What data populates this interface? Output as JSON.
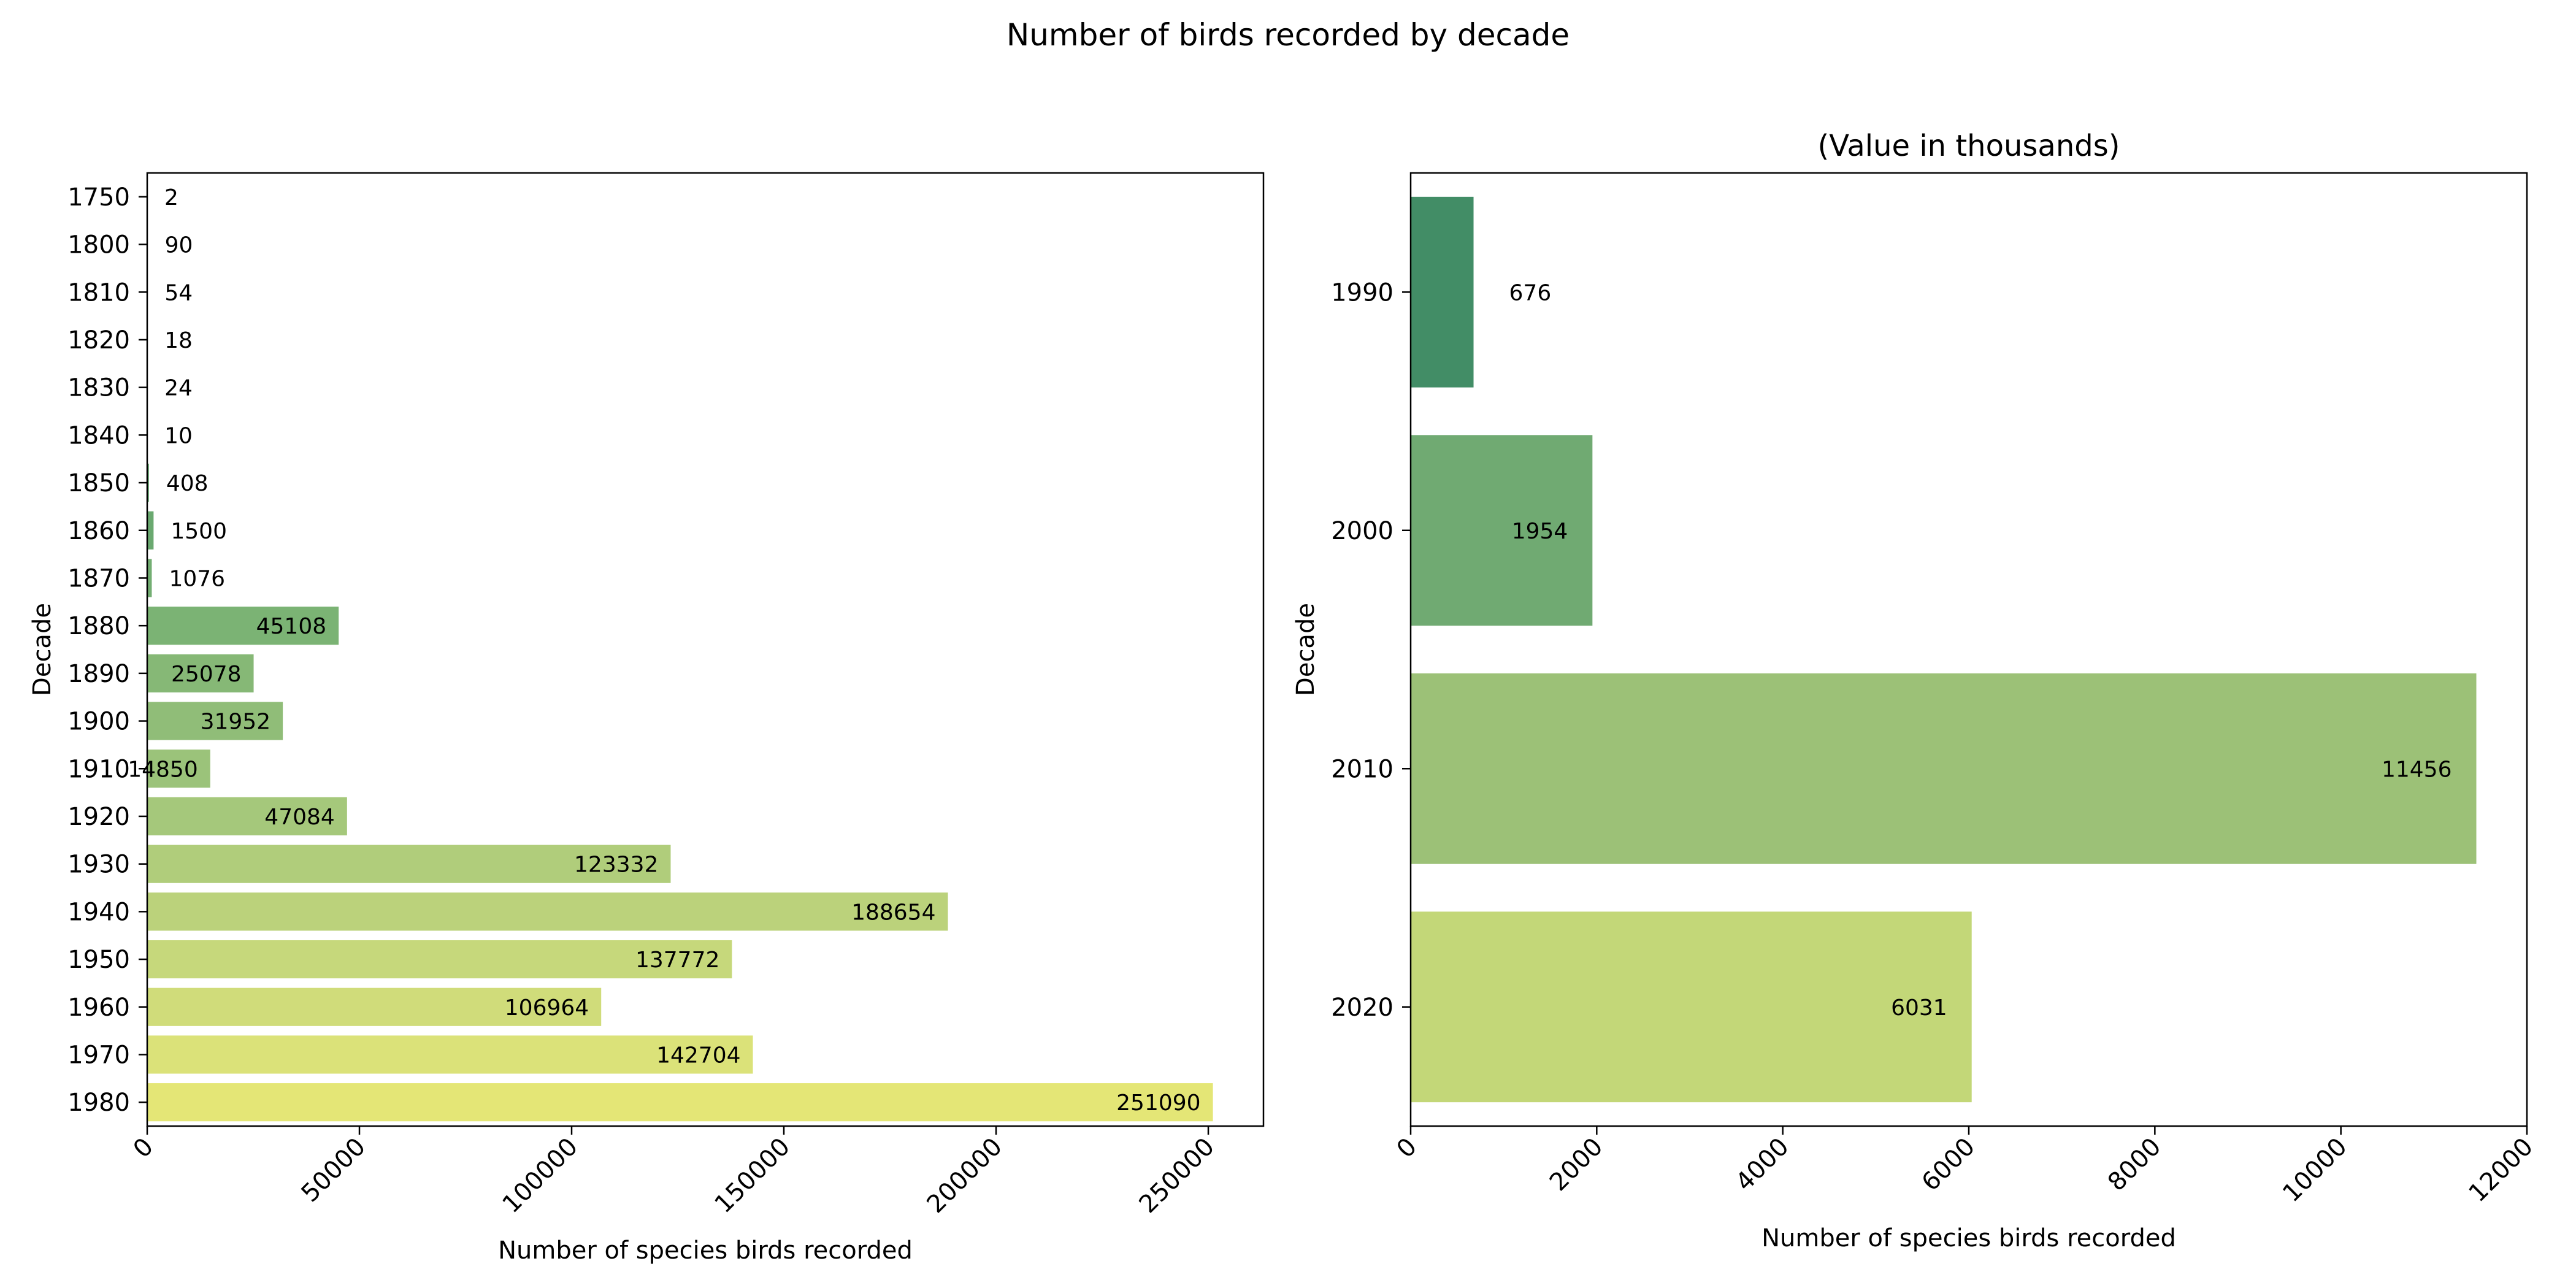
{
  "figure": {
    "title": "Number of birds recorded by decade"
  },
  "chart_data": [
    {
      "type": "bar",
      "orientation": "horizontal",
      "title": "",
      "xlabel": "Number of species birds recorded",
      "ylabel": "Decade",
      "xlim": [
        0,
        263000
      ],
      "xticks": [
        0,
        50000,
        100000,
        150000,
        200000,
        250000
      ],
      "categories": [
        "1750",
        "1800",
        "1810",
        "1820",
        "1830",
        "1840",
        "1850",
        "1860",
        "1870",
        "1880",
        "1890",
        "1900",
        "1910",
        "1920",
        "1930",
        "1940",
        "1950",
        "1960",
        "1970",
        "1980"
      ],
      "values": [
        2,
        90,
        54,
        18,
        24,
        10,
        408,
        1500,
        1076,
        45108,
        25078,
        31952,
        14850,
        47084,
        123332,
        188654,
        137772,
        106964,
        142704,
        251090
      ],
      "colors": [
        "#358a62",
        "#3b8e64",
        "#429266",
        "#4a9768",
        "#529b6a",
        "#5aa06c",
        "#62a56e",
        "#6aa970",
        "#73ae72",
        "#7bb374",
        "#86b876",
        "#90bd78",
        "#9bc37a",
        "#a5c87b",
        "#b0cd7b",
        "#bbd27b",
        "#c6d87b",
        "#d0dc7a",
        "#dbe279",
        "#e4e676"
      ],
      "grid": false
    },
    {
      "type": "bar",
      "orientation": "horizontal",
      "title": "(Value in thousands)",
      "xlabel": "Number of species birds recorded",
      "ylabel": "Decade",
      "xlim": [
        0,
        12000
      ],
      "xticks": [
        0,
        2000,
        4000,
        6000,
        8000,
        10000,
        12000
      ],
      "categories": [
        "1990",
        "2000",
        "2010",
        "2020"
      ],
      "values": [
        676,
        1954,
        11456,
        6031
      ],
      "colors": [
        "#428d66",
        "#70aa72",
        "#9cc177",
        "#c3d778"
      ],
      "grid": false
    }
  ]
}
